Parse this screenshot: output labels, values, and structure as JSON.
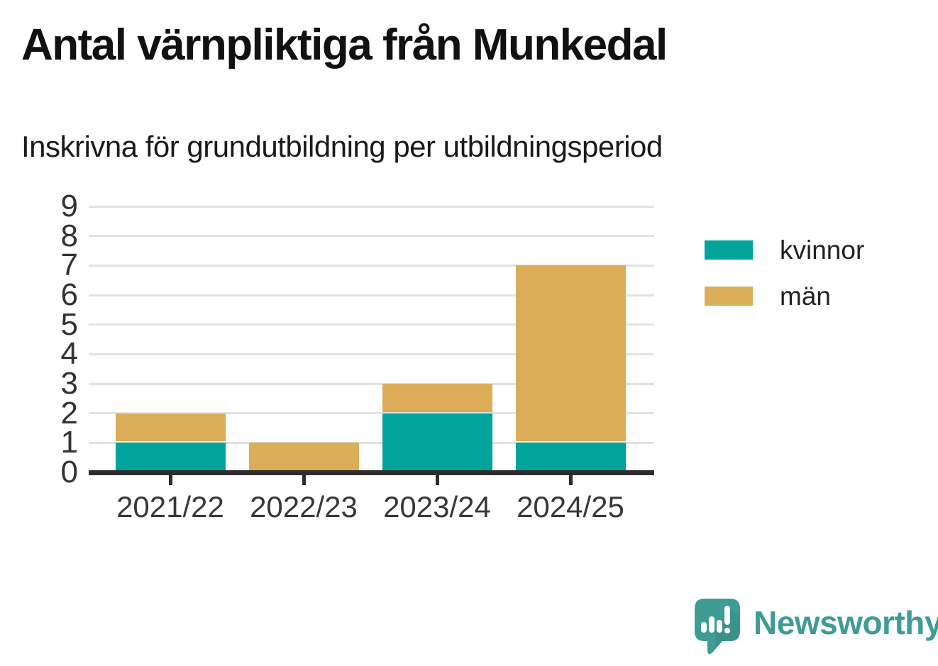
{
  "title": "Antal värnpliktiga från Munkedal",
  "subtitle": "Inskrivna för grundutbildning per utbildningsperiod",
  "chart_data": {
    "type": "bar",
    "stacked": true,
    "title": "Antal värnpliktiga från Munkedal",
    "subtitle": "Inskrivna för grundutbildning per utbildningsperiod",
    "categories": [
      "2021/22",
      "2022/23",
      "2023/24",
      "2024/25"
    ],
    "series": [
      {
        "name": "kvinnor",
        "color": "#00a49a",
        "values": [
          1,
          0,
          2,
          1
        ]
      },
      {
        "name": "män",
        "color": "#dbad58",
        "values": [
          1,
          1,
          1,
          6
        ]
      }
    ],
    "stack_totals": [
      2,
      1,
      3,
      7
    ],
    "xlabel": "",
    "ylabel": "",
    "ylim": [
      0,
      9
    ],
    "yticks": [
      0,
      1,
      2,
      3,
      4,
      5,
      6,
      7,
      8,
      9
    ],
    "grid": true,
    "legend_position": "right"
  },
  "colors": {
    "kvinnor": "#00a49a",
    "man": "#dbad58",
    "grid": "#e2e2e2",
    "axis": "#2d2d2d",
    "tick_text": "#333333",
    "brand_teal": "#3e9c95"
  },
  "branding": {
    "logo_text": "Newsworthy",
    "logo_icon": "bar-chart-speech-bubble-icon"
  }
}
